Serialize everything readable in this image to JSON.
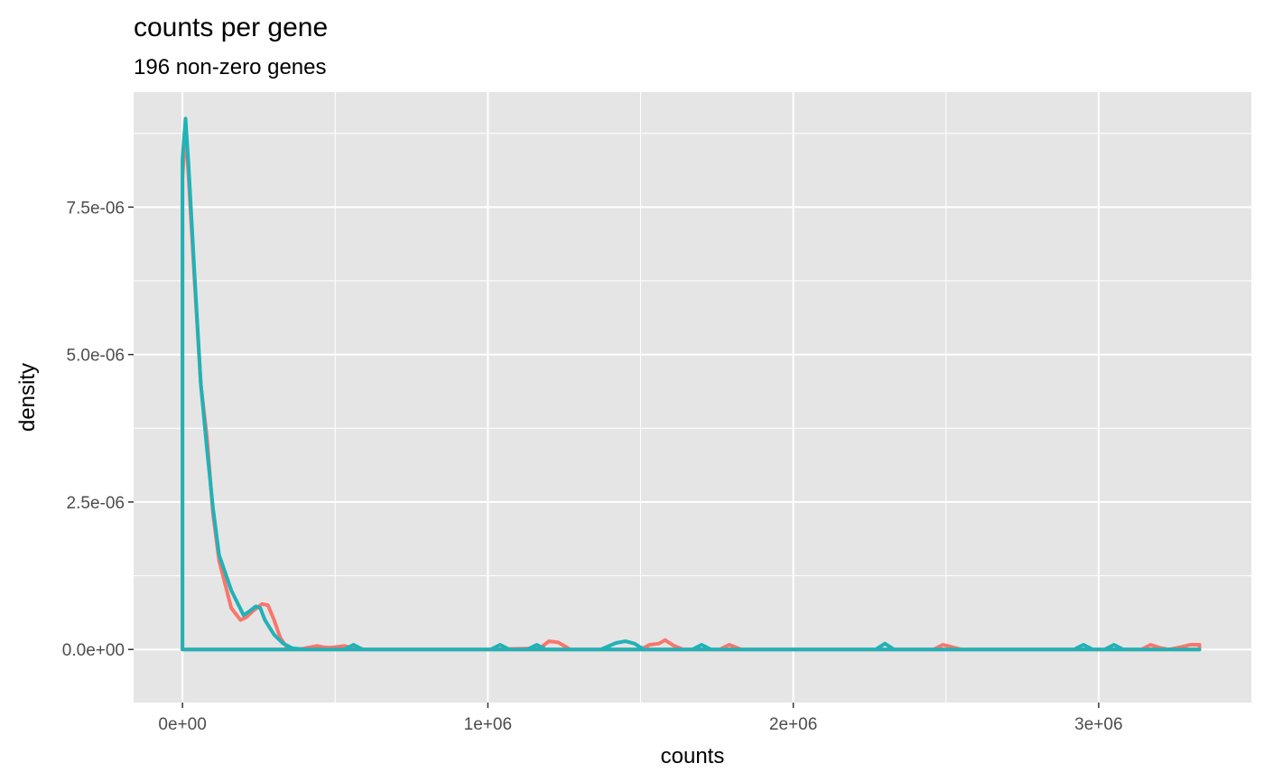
{
  "chart_data": {
    "type": "line",
    "title": "counts per gene",
    "subtitle": "196 non-zero genes",
    "xlabel": "counts",
    "ylabel": "density",
    "xlim": [
      -160000,
      3500000
    ],
    "ylim": [
      -9e-07,
      9.45e-06
    ],
    "x_ticks": [
      0,
      1000000,
      2000000,
      3000000
    ],
    "x_tick_labels": [
      "0e+00",
      "1e+06",
      "2e+06",
      "3e+06"
    ],
    "y_ticks": [
      0,
      2.5e-06,
      5e-06,
      7.5e-06
    ],
    "y_tick_labels": [
      "0.0e+00",
      "2.5e-06",
      "5.0e-06",
      "7.5e-06"
    ],
    "grid": true,
    "legend": "none",
    "colors": {
      "panel": "#e5e5e5",
      "grid": "#ffffff",
      "series_1": "#f8766d",
      "series_2": "#20b2b7"
    },
    "series": [
      {
        "color": "#f8766d",
        "x": [
          0,
          0,
          10000,
          20000,
          40000,
          60000,
          80000,
          100000,
          120000,
          140000,
          160000,
          190000,
          210000,
          230000,
          260000,
          280000,
          300000,
          320000,
          340000,
          360000,
          380000,
          440000,
          460000,
          480000,
          500000,
          530000,
          560000,
          600000,
          1000000,
          1170000,
          1200000,
          1230000,
          1270000,
          1500000,
          1530000,
          1560000,
          1580000,
          1610000,
          1640000,
          1760000,
          1790000,
          1830000,
          2460000,
          2490000,
          2520000,
          2550000,
          3140000,
          3170000,
          3200000,
          3230000,
          3270000,
          3300000,
          3330000,
          3330000,
          0
        ],
        "y": [
          0,
          8e-06,
          8.8e-06,
          8e-06,
          6.2e-06,
          4.5e-06,
          3.6e-06,
          2.3e-06,
          1.5e-06,
          1.1e-06,
          7e-07,
          5e-07,
          5.5e-07,
          6.5e-07,
          7.7e-07,
          7.5e-07,
          5e-07,
          2e-07,
          5e-08,
          0,
          0,
          6e-08,
          4e-08,
          3e-08,
          4e-08,
          6e-08,
          2e-08,
          0,
          0,
          2e-08,
          1.4e-07,
          1.2e-07,
          0,
          0,
          8e-08,
          1e-07,
          1.6e-07,
          6e-08,
          0,
          0,
          8e-08,
          0,
          0,
          8e-08,
          4e-08,
          0,
          0,
          8e-08,
          3e-08,
          0,
          4e-08,
          8e-08,
          8e-08,
          0,
          0
        ]
      },
      {
        "color": "#20b2b7",
        "x": [
          0,
          0,
          10000,
          20000,
          40000,
          60000,
          80000,
          100000,
          120000,
          140000,
          160000,
          200000,
          220000,
          240000,
          255000,
          270000,
          300000,
          330000,
          360000,
          400000,
          530000,
          560000,
          590000,
          620000,
          1010000,
          1040000,
          1070000,
          1130000,
          1160000,
          1190000,
          1370000,
          1420000,
          1450000,
          1480000,
          1510000,
          1670000,
          1700000,
          1730000,
          2270000,
          2300000,
          2330000,
          2920000,
          2950000,
          2980000,
          3020000,
          3050000,
          3080000,
          3330000,
          3330000,
          0
        ],
        "y": [
          0,
          8.3e-06,
          9e-06,
          8.2e-06,
          6.3e-06,
          4.5e-06,
          3.4e-06,
          2.4e-06,
          1.6e-06,
          1.3e-06,
          1e-06,
          5.8e-07,
          6.5e-07,
          7.3e-07,
          7e-07,
          5e-07,
          2.5e-07,
          1e-07,
          2e-08,
          0,
          0,
          8e-08,
          0,
          0,
          0,
          8e-08,
          0,
          0,
          8e-08,
          0,
          0,
          1.1e-07,
          1.4e-07,
          1e-07,
          0,
          0,
          8e-08,
          0,
          0,
          1e-07,
          0,
          0,
          8e-08,
          0,
          0,
          8e-08,
          0,
          0,
          0,
          0
        ]
      }
    ]
  }
}
